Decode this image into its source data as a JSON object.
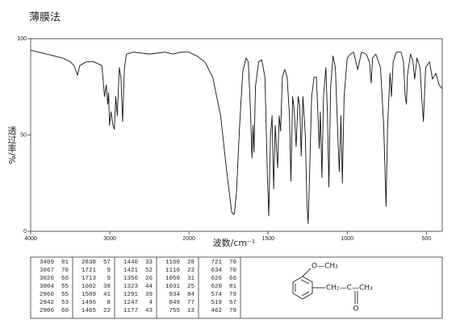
{
  "title": "薄膜法",
  "chart_data": {
    "type": "line",
    "xlabel": "波数/cm⁻¹",
    "ylabel": "透过率/%",
    "color": "#111111",
    "xlim": [
      4000,
      400
    ],
    "xticks": [
      4000,
      3000,
      2000,
      1500,
      1000,
      500
    ],
    "ylim": [
      0,
      100
    ],
    "yticks": [
      100,
      50,
      0
    ],
    "x": [
      4000,
      3800,
      3600,
      3500,
      3450,
      3409,
      3380,
      3300,
      3200,
      3100,
      3067,
      3045,
      3026,
      3015,
      3004,
      2985,
      2960,
      2942,
      2925,
      2906,
      2880,
      2860,
      2838,
      2815,
      2790,
      2700,
      2500,
      2300,
      2200,
      2100,
      2000,
      1950,
      1900,
      1850,
      1800,
      1760,
      1730,
      1721,
      1713,
      1700,
      1680,
      1660,
      1640,
      1625,
      1610,
      1602,
      1595,
      1589,
      1580,
      1560,
      1540,
      1520,
      1505,
      1496,
      1485,
      1475,
      1465,
      1455,
      1440,
      1430,
      1421,
      1410,
      1395,
      1380,
      1365,
      1356,
      1345,
      1335,
      1323,
      1310,
      1300,
      1291,
      1280,
      1265,
      1255,
      1247,
      1238,
      1225,
      1210,
      1195,
      1185,
      1177,
      1170,
      1160,
      1150,
      1135,
      1125,
      1116,
      1105,
      1090,
      1075,
      1060,
      1050,
      1040,
      1031,
      1020,
      1000,
      980,
      960,
      934,
      910,
      880,
      860,
      849,
      840,
      820,
      790,
      770,
      755,
      745,
      730,
      721,
      710,
      690,
      660,
      645,
      634,
      626,
      620,
      600,
      585,
      574,
      560,
      540,
      530,
      519,
      505,
      480,
      462,
      440,
      420,
      400
    ],
    "values": [
      94,
      92,
      90,
      88,
      86,
      81,
      86,
      88,
      88,
      86,
      70,
      76,
      66,
      72,
      55,
      62,
      55,
      53,
      70,
      60,
      85,
      80,
      57,
      85,
      92,
      93,
      92,
      93,
      92,
      93,
      93,
      91,
      88,
      80,
      60,
      30,
      10,
      9,
      9,
      20,
      55,
      83,
      90,
      88,
      60,
      38,
      55,
      41,
      75,
      88,
      89,
      80,
      30,
      8,
      50,
      60,
      22,
      55,
      33,
      60,
      52,
      80,
      84,
      80,
      60,
      26,
      70,
      63,
      44,
      70,
      65,
      39,
      70,
      50,
      15,
      4,
      30,
      70,
      80,
      80,
      60,
      43,
      62,
      28,
      70,
      85,
      60,
      23,
      75,
      91,
      85,
      50,
      31,
      60,
      25,
      70,
      90,
      92,
      93,
      84,
      93,
      92,
      88,
      77,
      90,
      92,
      85,
      55,
      13,
      55,
      82,
      70,
      88,
      93,
      93,
      88,
      70,
      66,
      81,
      92,
      88,
      79,
      90,
      85,
      70,
      57,
      85,
      88,
      79,
      82,
      76,
      74
    ]
  },
  "peak_table": {
    "rows": [
      [
        3409,
        81,
        2838,
        57,
        1440,
        33,
        1160,
        28,
        721,
        70
      ],
      [
        3067,
        70,
        1721,
        9,
        1421,
        52,
        1116,
        23,
        634,
        70
      ],
      [
        3026,
        66,
        1713,
        9,
        1356,
        26,
        1050,
        31,
        626,
        66
      ],
      [
        3004,
        55,
        1602,
        38,
        1323,
        44,
        1031,
        25,
        620,
        81
      ],
      [
        2960,
        55,
        1589,
        41,
        1291,
        39,
        934,
        84,
        574,
        79
      ],
      [
        2942,
        53,
        1496,
        8,
        1247,
        4,
        849,
        77,
        519,
        57
      ],
      [
        2906,
        60,
        1465,
        22,
        1177,
        43,
        755,
        13,
        462,
        79
      ]
    ]
  },
  "structure": {
    "methoxy": "O—CH₃",
    "chain": "CH₂—C—CH₃",
    "carbonyl": "O"
  }
}
